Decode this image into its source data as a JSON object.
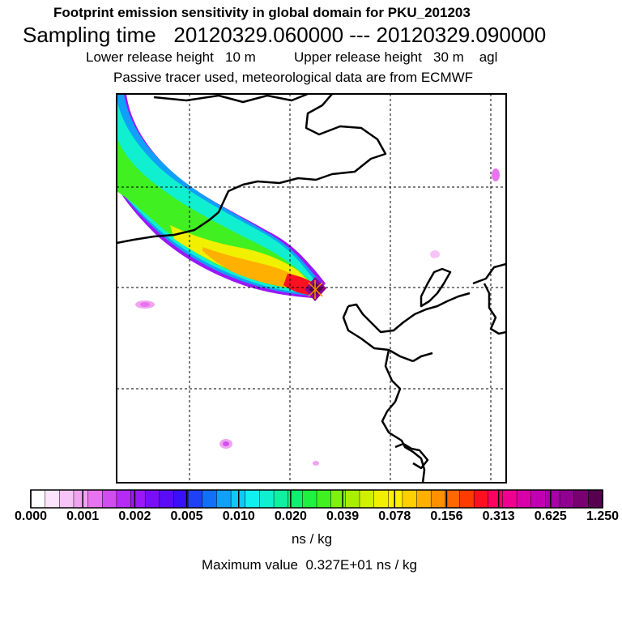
{
  "header": {
    "title": "Footprint emission sensitivity in global domain for PKU_201203",
    "sampling_label": "Sampling time",
    "sampling_range": "20120329.060000 --- 20120329.090000",
    "release_heights": "Lower release height   10 m          Upper release height   30 m    agl",
    "tracer_note": "Passive tracer used, meteorological data are from ECMWF"
  },
  "colorbar": {
    "colors": [
      "#ffffff",
      "#fde4fd",
      "#f7c4f7",
      "#f0a4f0",
      "#e873ee",
      "#d04df0",
      "#b52af5",
      "#9a18f8",
      "#7a0ef8",
      "#5a0cf8",
      "#3a10f8",
      "#2040f8",
      "#1070f8",
      "#10a0f8",
      "#10c8f8",
      "#10f0f0",
      "#10f0d0",
      "#10f0a0",
      "#10f070",
      "#20f040",
      "#40f020",
      "#80f010",
      "#a8f000",
      "#d0f000",
      "#f0f000",
      "#fff000",
      "#ffd000",
      "#ffb000",
      "#ff9000",
      "#ff6800",
      "#ff3c00",
      "#ff1020",
      "#ff0060",
      "#f00090",
      "#d800a8",
      "#c000b0",
      "#a800a8",
      "#900090",
      "#780070",
      "#580050"
    ],
    "tick_labels": [
      "0.000",
      "0.001",
      "0.002",
      "0.005",
      "0.010",
      "0.020",
      "0.039",
      "0.078",
      "0.156",
      "0.313",
      "0.625",
      "1.250"
    ],
    "units": "ns / kg"
  },
  "footer": {
    "max_label": "Maximum value",
    "max_value": "0.327E+01",
    "max_units": "ns / kg"
  },
  "map": {
    "receptor_marker": "star-marker"
  }
}
